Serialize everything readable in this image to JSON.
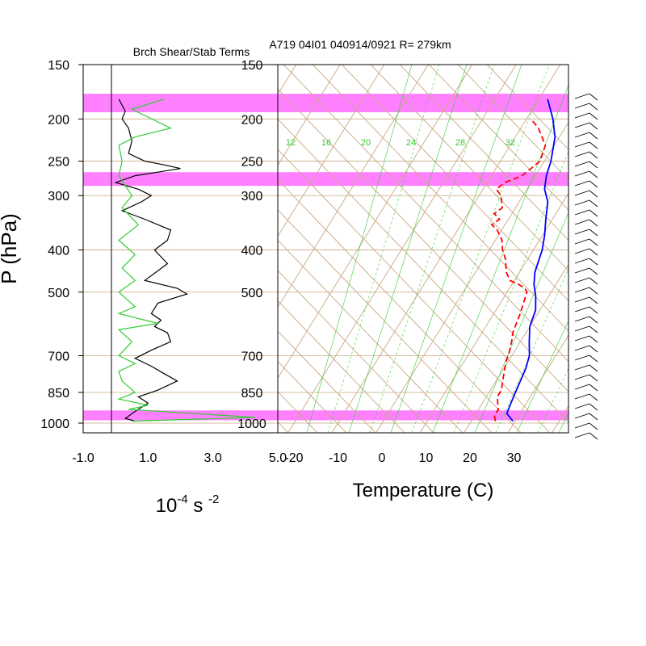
{
  "header": {
    "left_title": "Brch Shear/Stab Terms",
    "right_title": "A719 04I01 040914/0921 R= 279km"
  },
  "axes": {
    "pressure_label": "P (hPa)",
    "shear_units_base": "10",
    "shear_units_exp1": "-4",
    "shear_units_mid": " s ",
    "shear_units_exp2": "-2",
    "temperature_label": "Temperature (C)"
  },
  "colors": {
    "highlight_band": "#ff80ff",
    "grid_tan": "#c8a882",
    "mixing_green": "#33cc33",
    "temperature": "#0000ff",
    "dewpoint": "#ff0000",
    "shear": "#000000",
    "stability": "#33cc33"
  },
  "chart_data": [
    {
      "type": "line",
      "panel": "shear-stability-profile",
      "title": "Brch Shear/Stab Terms",
      "xlabel": "10^-4 s^-2",
      "ylabel": "P (hPa)",
      "xlim": [
        -1.0,
        5.0
      ],
      "ylim": [
        1050,
        150
      ],
      "y_scale": "log",
      "x_ticks": [
        "-1.0",
        "1.0",
        "3.0",
        "5.0"
      ],
      "y_ticks": [
        "150",
        "200",
        "250",
        "300",
        "400",
        "500",
        "700",
        "850",
        "1000"
      ],
      "highlight_bands_hPa": [
        [
          175,
          193
        ],
        [
          265,
          285
        ],
        [
          935,
          985
        ]
      ],
      "series": [
        {
          "color": "black",
          "points": [
            [
              0.1,
              180
            ],
            [
              0.3,
              192
            ],
            [
              0.2,
              200
            ],
            [
              0.4,
              210
            ],
            [
              0.5,
              225
            ],
            [
              0.4,
              240
            ],
            [
              0.9,
              250
            ],
            [
              1.5,
              255
            ],
            [
              2.0,
              260
            ],
            [
              1.3,
              265
            ],
            [
              0.6,
              270
            ],
            [
              0.0,
              280
            ],
            [
              0.7,
              290
            ],
            [
              1.1,
              300
            ],
            [
              0.8,
              310
            ],
            [
              0.2,
              325
            ],
            [
              0.9,
              340
            ],
            [
              1.7,
              360
            ],
            [
              1.6,
              380
            ],
            [
              1.2,
              400
            ],
            [
              1.6,
              430
            ],
            [
              0.9,
              470
            ],
            [
              1.9,
              490
            ],
            [
              2.2,
              505
            ],
            [
              1.3,
              530
            ],
            [
              1.1,
              560
            ],
            [
              1.4,
              580
            ],
            [
              1.2,
              600
            ],
            [
              1.6,
              620
            ],
            [
              1.7,
              650
            ],
            [
              1.1,
              680
            ],
            [
              0.6,
              710
            ],
            [
              1.1,
              740
            ],
            [
              1.5,
              770
            ],
            [
              1.9,
              800
            ],
            [
              1.3,
              840
            ],
            [
              0.7,
              870
            ],
            [
              1.0,
              900
            ],
            [
              0.6,
              940
            ],
            [
              0.3,
              975
            ],
            [
              0.6,
              990
            ]
          ]
        },
        {
          "color": "green",
          "points": [
            [
              1.5,
              180
            ],
            [
              0.5,
              190
            ],
            [
              1.7,
              210
            ],
            [
              0.6,
              220
            ],
            [
              0.1,
              230
            ],
            [
              0.2,
              250
            ],
            [
              0.1,
              270
            ],
            [
              0.5,
              300
            ],
            [
              0.2,
              320
            ],
            [
              0.7,
              350
            ],
            [
              0.1,
              380
            ],
            [
              0.6,
              410
            ],
            [
              0.2,
              440
            ],
            [
              0.6,
              470
            ],
            [
              0.1,
              500
            ],
            [
              0.6,
              540
            ],
            [
              0.1,
              560
            ],
            [
              1.3,
              590
            ],
            [
              0.1,
              610
            ],
            [
              0.5,
              650
            ],
            [
              0.1,
              700
            ],
            [
              0.6,
              730
            ],
            [
              0.1,
              760
            ],
            [
              0.2,
              800
            ],
            [
              0.6,
              850
            ],
            [
              0.1,
              880
            ],
            [
              1.0,
              910
            ],
            [
              0.4,
              930
            ],
            [
              4.3,
              970
            ],
            [
              0.5,
              990
            ]
          ]
        }
      ]
    },
    {
      "type": "line",
      "panel": "skew-t",
      "title": "A719 04I01 040914/0921 R= 279km",
      "xlabel": "Temperature (C)",
      "ylabel": "P (hPa)",
      "xlim": [
        -22,
        42
      ],
      "ylim": [
        1050,
        150
      ],
      "y_scale": "log",
      "x_ticks": [
        "-20",
        "-10",
        "0",
        "10",
        "20",
        "30"
      ],
      "y_ticks": [
        "150",
        "200",
        "250",
        "300",
        "400",
        "500",
        "700",
        "850",
        "1000"
      ],
      "highlight_bands_hPa": [
        [
          175,
          193
        ],
        [
          265,
          285
        ],
        [
          935,
          985
        ]
      ],
      "mixing_ratio_labels": [
        "12",
        "16",
        "20",
        "24",
        "28",
        "32"
      ],
      "series": [
        {
          "color": "blue",
          "points": [
            [
              29.5,
              990
            ],
            [
              27,
              950
            ],
            [
              26.5,
              900
            ],
            [
              26,
              850
            ],
            [
              25.5,
              800
            ],
            [
              25,
              750
            ],
            [
              24,
              700
            ],
            [
              22,
              650
            ],
            [
              20,
              600
            ],
            [
              19,
              550
            ],
            [
              17,
              510
            ],
            [
              15,
              480
            ],
            [
              13.5,
              450
            ],
            [
              12,
              400
            ],
            [
              10.5,
              370
            ],
            [
              8.5,
              340
            ],
            [
              6.5,
              310
            ],
            [
              4,
              290
            ],
            [
              2.5,
              270
            ],
            [
              1.5,
              250
            ],
            [
              -1,
              220
            ],
            [
              -4,
              200
            ],
            [
              -8,
              180
            ]
          ]
        },
        {
          "color": "red",
          "dashed": true,
          "points": [
            [
              25.5,
              990
            ],
            [
              24.5,
              960
            ],
            [
              24.5,
              930
            ],
            [
              23.5,
              900
            ],
            [
              22.5,
              870
            ],
            [
              22.5,
              840
            ],
            [
              21.5,
              800
            ],
            [
              20.5,
              760
            ],
            [
              19.5,
              720
            ],
            [
              19,
              690
            ],
            [
              18,
              650
            ],
            [
              17,
              620
            ],
            [
              16.5,
              590
            ],
            [
              16,
              560
            ],
            [
              15,
              520
            ],
            [
              14.5,
              500
            ],
            [
              13.5,
              490
            ],
            [
              11.5,
              480
            ],
            [
              9,
              470
            ],
            [
              7,
              450
            ],
            [
              5,
              420
            ],
            [
              3,
              400
            ],
            [
              1.5,
              380
            ],
            [
              -1,
              360
            ],
            [
              -3,
              350
            ],
            [
              -2,
              340
            ],
            [
              -4,
              330
            ],
            [
              -3,
              320
            ],
            [
              -5,
              300
            ],
            [
              -7,
              290
            ],
            [
              -6,
              280
            ],
            [
              -3,
              270
            ],
            [
              -1,
              250
            ],
            [
              -2,
              230
            ],
            [
              -6,
              210
            ],
            [
              -9,
              200
            ]
          ]
        }
      ]
    }
  ]
}
